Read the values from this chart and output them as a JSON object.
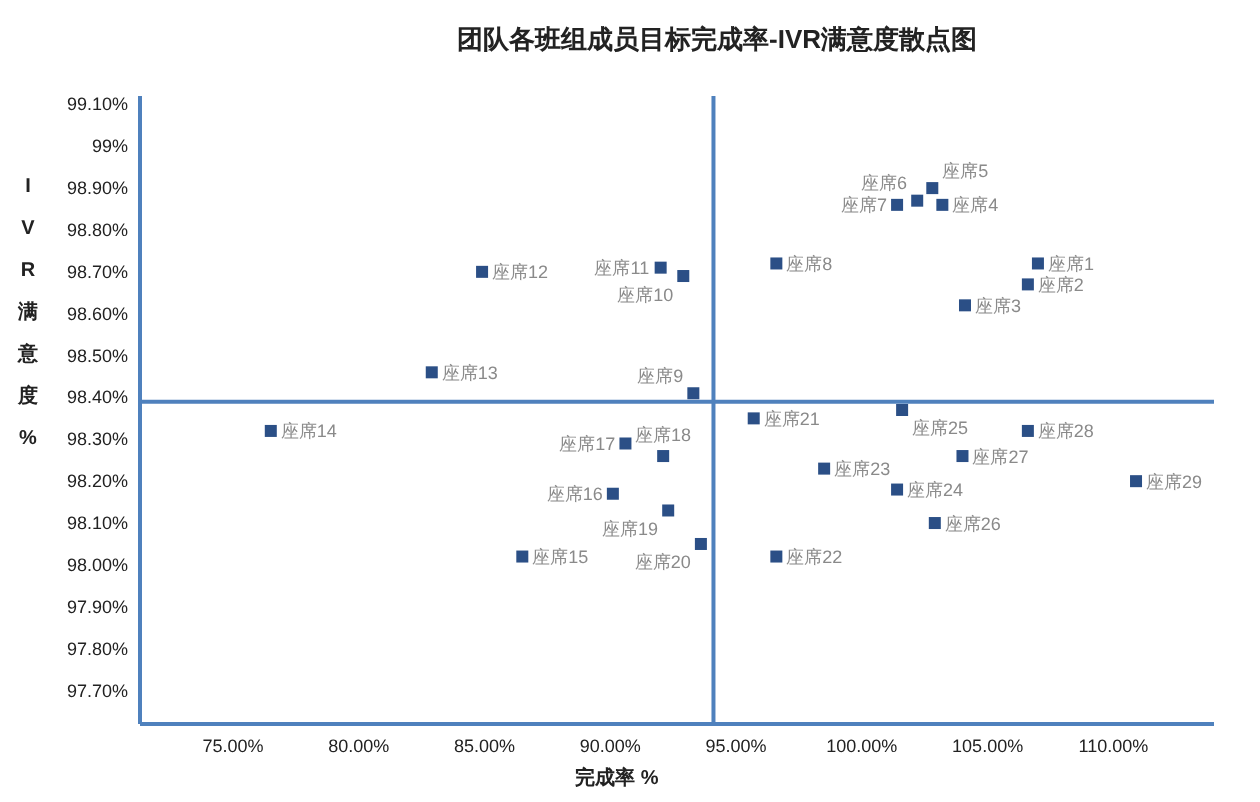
{
  "chart_data": {
    "type": "scatter",
    "title": "团队各班组成员目标完成率-IVR满意度散点图",
    "xlabel": "完成率 %",
    "ylabel": "IVR满意度%",
    "xlim": [
      71.3,
      114
    ],
    "ylim": [
      97.62,
      99.12
    ],
    "xticks": [
      {
        "value": 75,
        "label": "75.00%"
      },
      {
        "value": 80,
        "label": "80.00%"
      },
      {
        "value": 85,
        "label": "85.00%"
      },
      {
        "value": 90,
        "label": "90.00%"
      },
      {
        "value": 95,
        "label": "95.00%"
      },
      {
        "value": 100,
        "label": "100.00%"
      },
      {
        "value": 105,
        "label": "105.00%"
      },
      {
        "value": 110,
        "label": "110.00%"
      }
    ],
    "yticks": [
      {
        "value": 99.1,
        "label": "99.10%"
      },
      {
        "value": 99,
        "label": "99%"
      },
      {
        "value": 98.9,
        "label": "98.90%"
      },
      {
        "value": 98.8,
        "label": "98.80%"
      },
      {
        "value": 98.7,
        "label": "98.70%"
      },
      {
        "value": 98.6,
        "label": "98.60%"
      },
      {
        "value": 98.5,
        "label": "98.50%"
      },
      {
        "value": 98.4,
        "label": "98.40%"
      },
      {
        "value": 98.3,
        "label": "98.30%"
      },
      {
        "value": 98.2,
        "label": "98.20%"
      },
      {
        "value": 98.1,
        "label": "98.10%"
      },
      {
        "value": 98,
        "label": "98.00%"
      },
      {
        "value": 97.9,
        "label": "97.90%"
      },
      {
        "value": 97.8,
        "label": "97.80%"
      },
      {
        "value": 97.7,
        "label": "97.70%"
      }
    ],
    "marker": "square",
    "grid": false,
    "series": [
      {
        "color": "#2b4f86",
        "x": [
          107.0,
          106.6,
          104.1,
          103.2,
          102.8,
          102.2,
          101.4,
          96.6,
          93.3,
          92.9,
          92.0,
          84.9,
          82.9,
          76.5,
          86.5,
          90.1,
          90.6,
          92.1,
          92.3,
          93.6,
          95.7,
          96.6,
          98.5,
          101.4,
          101.6,
          102.9,
          104.0,
          106.6,
          110.9
        ],
        "values": [
          98.72,
          98.67,
          98.62,
          98.86,
          98.9,
          98.87,
          98.86,
          98.72,
          98.41,
          98.69,
          98.71,
          98.7,
          98.46,
          98.32,
          98.02,
          98.17,
          98.29,
          98.26,
          98.13,
          98.05,
          98.35,
          98.02,
          98.23,
          98.18,
          98.37,
          98.1,
          98.26,
          98.32,
          98.2
        ]
      }
    ],
    "ref_lines": [
      {
        "axis": "x",
        "value": 94.1,
        "color": "#4f81bd"
      },
      {
        "axis": "y",
        "value": 98.39,
        "color": "#4f81bd"
      }
    ],
    "annotations": [
      {
        "text": "座席1",
        "x": 107.0,
        "y": 98.72
      },
      {
        "text": "座席2",
        "x": 106.6,
        "y": 98.67
      },
      {
        "text": "座席3",
        "x": 104.1,
        "y": 98.62
      },
      {
        "text": "座席4",
        "x": 103.2,
        "y": 98.86
      },
      {
        "text": "座席5",
        "x": 102.8,
        "y": 98.9
      },
      {
        "text": "座席6",
        "x": 102.2,
        "y": 98.87
      },
      {
        "text": "座席7",
        "x": 101.4,
        "y": 98.86
      },
      {
        "text": "座席8",
        "x": 96.6,
        "y": 98.72
      },
      {
        "text": "座席9",
        "x": 93.3,
        "y": 98.41
      },
      {
        "text": "座席10",
        "x": 92.9,
        "y": 98.69
      },
      {
        "text": "座席11",
        "x": 92.0,
        "y": 98.71
      },
      {
        "text": "座席12",
        "x": 84.9,
        "y": 98.7
      },
      {
        "text": "座席13",
        "x": 82.9,
        "y": 98.46
      },
      {
        "text": "座席14",
        "x": 76.5,
        "y": 98.32
      },
      {
        "text": "座席15",
        "x": 86.5,
        "y": 98.02
      },
      {
        "text": "座席16",
        "x": 90.1,
        "y": 98.17
      },
      {
        "text": "座席17",
        "x": 90.6,
        "y": 98.29
      },
      {
        "text": "座席18",
        "x": 92.1,
        "y": 98.26
      },
      {
        "text": "座席19",
        "x": 92.3,
        "y": 98.13
      },
      {
        "text": "座席20",
        "x": 93.6,
        "y": 98.05
      },
      {
        "text": "座席21",
        "x": 95.7,
        "y": 98.35
      },
      {
        "text": "座席22",
        "x": 96.6,
        "y": 98.02
      },
      {
        "text": "座席23",
        "x": 98.5,
        "y": 98.23
      },
      {
        "text": "座席24",
        "x": 101.4,
        "y": 98.18
      },
      {
        "text": "座席25",
        "x": 101.6,
        "y": 98.37
      },
      {
        "text": "座席26",
        "x": 102.9,
        "y": 98.1
      },
      {
        "text": "座席27",
        "x": 104.0,
        "y": 98.26
      },
      {
        "text": "座席28",
        "x": 106.6,
        "y": 98.32
      },
      {
        "text": "座席29",
        "x": 110.9,
        "y": 98.2
      }
    ]
  }
}
